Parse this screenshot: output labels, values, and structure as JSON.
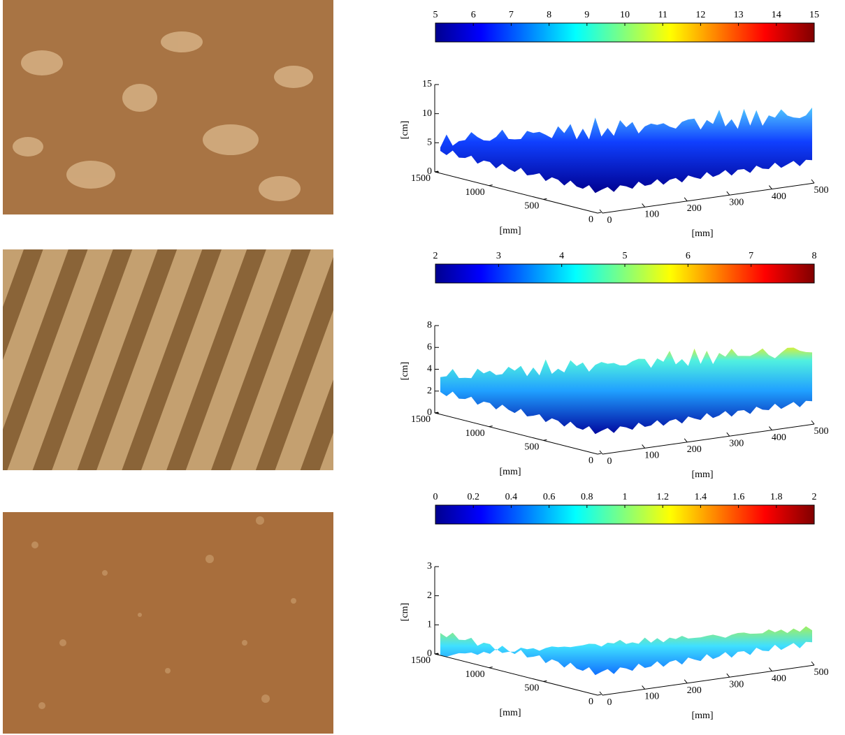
{
  "panels": [
    {
      "colorbar": {
        "lim": [
          5,
          15
        ],
        "ticks": [
          5,
          6,
          7,
          8,
          9,
          10,
          11,
          12,
          13,
          14,
          15
        ]
      },
      "z_axis": {
        "label": "[cm]",
        "lim": [
          0,
          15
        ],
        "ticks": [
          0,
          5,
          10,
          15
        ]
      },
      "x_axis": {
        "label": "[mm]",
        "lim": [
          0,
          1500
        ],
        "ticks": [
          0,
          500,
          1000,
          1500
        ]
      },
      "y_axis": {
        "label": "[mm]",
        "lim": [
          0,
          500
        ],
        "ticks": [
          0,
          100,
          200,
          300,
          400,
          500
        ]
      }
    },
    {
      "colorbar": {
        "lim": [
          2,
          8
        ],
        "ticks": [
          2,
          3,
          4,
          5,
          6,
          7,
          8
        ]
      },
      "z_axis": {
        "label": "[cm]",
        "lim": [
          0,
          8
        ],
        "ticks": [
          0,
          2,
          4,
          6,
          8
        ]
      },
      "x_axis": {
        "label": "[mm]",
        "lim": [
          0,
          1500
        ],
        "ticks": [
          0,
          500,
          1000,
          1500
        ]
      },
      "y_axis": {
        "label": "[mm]",
        "lim": [
          0,
          500
        ],
        "ticks": [
          0,
          100,
          200,
          300,
          400,
          500
        ]
      }
    },
    {
      "colorbar": {
        "lim": [
          0,
          2
        ],
        "ticks": [
          0,
          0.2,
          0.4,
          0.6,
          0.8,
          1,
          1.2,
          1.4,
          1.6,
          1.8,
          2
        ]
      },
      "z_axis": {
        "label": "[cm]",
        "lim": [
          0,
          3
        ],
        "ticks": [
          0,
          1,
          2,
          3
        ]
      },
      "x_axis": {
        "label": "[mm]",
        "lim": [
          0,
          1500
        ],
        "ticks": [
          0,
          500,
          1000,
          1500
        ]
      },
      "y_axis": {
        "label": "[mm]",
        "lim": [
          0,
          500
        ],
        "ticks": [
          0,
          100,
          200,
          300,
          400,
          500
        ]
      }
    }
  ]
}
